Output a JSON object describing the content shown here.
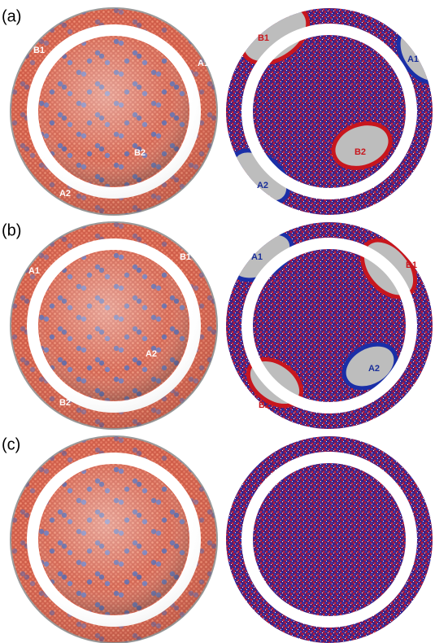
{
  "panels": [
    {
      "label": "(a)",
      "left": {
        "labels": [
          "B1",
          "A1",
          "B2",
          "A2"
        ]
      },
      "right": {
        "labels": [
          "B1",
          "A1",
          "B2",
          "A2"
        ]
      }
    },
    {
      "label": "(b)",
      "left": {
        "labels": [
          "A1",
          "B1",
          "A2",
          "B2"
        ]
      },
      "right": {
        "labels": [
          "A1",
          "B1",
          "A2",
          "B2"
        ]
      }
    },
    {
      "label": "(c)"
    }
  ]
}
